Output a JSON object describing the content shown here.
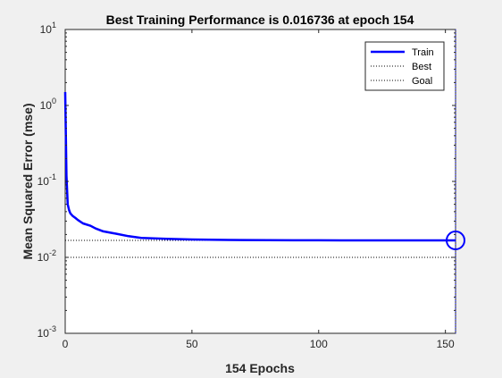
{
  "chart_data": {
    "type": "line",
    "title": "Best Training Performance is 0.016736 at epoch 154",
    "xlabel": "154 Epochs",
    "ylabel": "Mean Squared Error  (mse)",
    "xlim": [
      0,
      154
    ],
    "ylim": [
      0.001,
      10
    ],
    "yscale": "log",
    "grid": false,
    "legend_position": "top-right",
    "x_ticks": [
      0,
      50,
      100,
      150
    ],
    "x_tick_labels": [
      "0",
      "50",
      "100",
      "150"
    ],
    "y_ticks": [
      0.001,
      0.01,
      0.1,
      1,
      10
    ],
    "y_tick_labels": [
      {
        "base": "10",
        "exp": "-3"
      },
      {
        "base": "10",
        "exp": "-2"
      },
      {
        "base": "10",
        "exp": "-1"
      },
      {
        "base": "10",
        "exp": "0"
      },
      {
        "base": "10",
        "exp": "1"
      }
    ],
    "series": [
      {
        "name": "Train",
        "color": "#0000ff",
        "style": "solid",
        "x": [
          0,
          0.5,
          1,
          1.5,
          2,
          3,
          4,
          5,
          7,
          10,
          12,
          15,
          20,
          25,
          30,
          40,
          50,
          60,
          70,
          80,
          90,
          100,
          110,
          120,
          130,
          140,
          150,
          154
        ],
        "y": [
          1.5,
          0.12,
          0.05,
          0.042,
          0.038,
          0.035,
          0.033,
          0.031,
          0.028,
          0.026,
          0.024,
          0.022,
          0.0205,
          0.019,
          0.018,
          0.0175,
          0.0172,
          0.017,
          0.0169,
          0.0168,
          0.01678,
          0.01676,
          0.01675,
          0.01674,
          0.01674,
          0.016737,
          0.016736,
          0.016736
        ]
      }
    ],
    "best": {
      "name": "Best",
      "epoch": 154,
      "value": 0.016736,
      "color": "#000000",
      "style": "dotted"
    },
    "goal": {
      "name": "Goal",
      "value": 0.01,
      "color": "#000000",
      "style": "dotted"
    },
    "best_marker": {
      "shape": "circle",
      "color": "#0000ff"
    },
    "colors": {
      "background": "#f0f0f0",
      "axes": "#ffffff",
      "line": "#0000ff",
      "text": "#000000",
      "ticks": "#262626"
    }
  }
}
